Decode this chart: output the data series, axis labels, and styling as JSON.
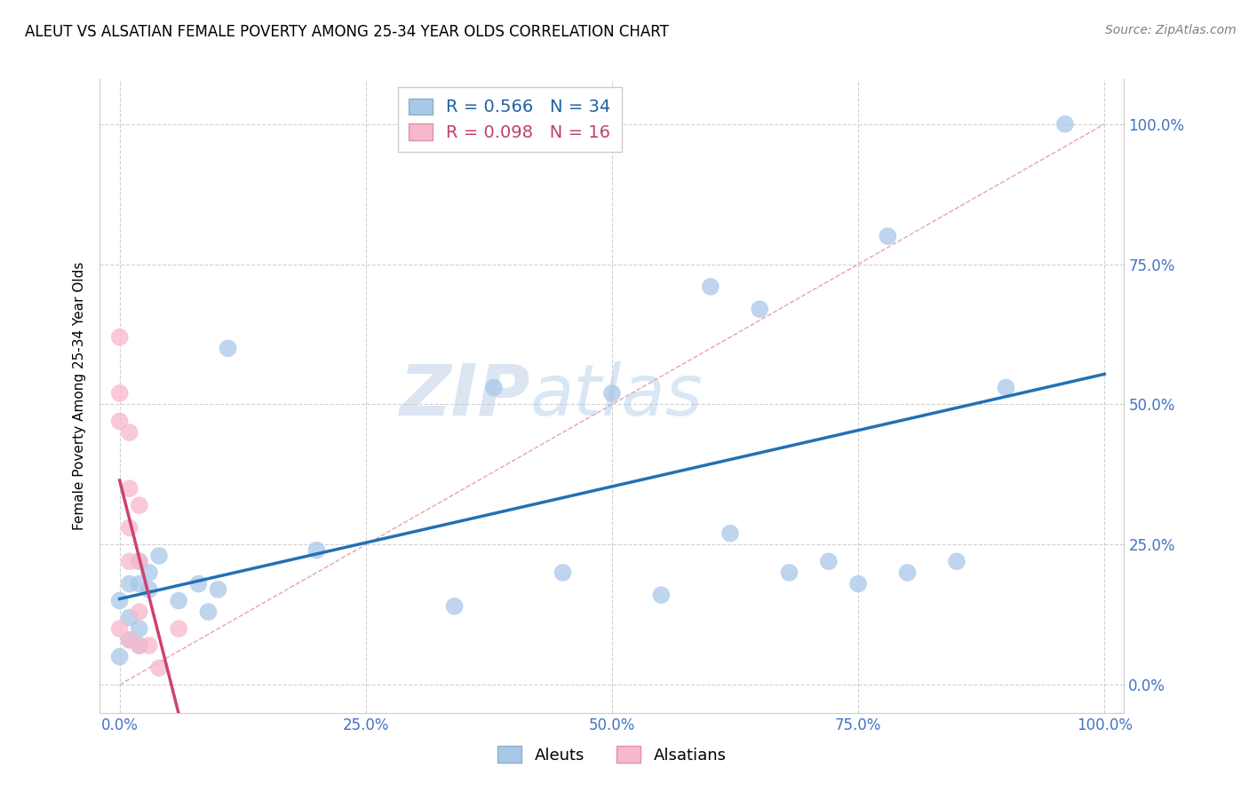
{
  "title": "ALEUT VS ALSATIAN FEMALE POVERTY AMONG 25-34 YEAR OLDS CORRELATION CHART",
  "source": "Source: ZipAtlas.com",
  "ylabel": "Female Poverty Among 25-34 Year Olds",
  "xlim": [
    -0.02,
    1.02
  ],
  "ylim": [
    -0.05,
    1.08
  ],
  "xticks": [
    0.0,
    0.25,
    0.5,
    0.75,
    1.0
  ],
  "yticks": [
    0.0,
    0.25,
    0.5,
    0.75,
    1.0
  ],
  "xticklabels": [
    "0.0%",
    "25.0%",
    "50.0%",
    "75.0%",
    "100.0%"
  ],
  "yticklabels": [
    "0.0%",
    "25.0%",
    "50.0%",
    "75.0%",
    "100.0%"
  ],
  "aleut_color": "#a8c8e8",
  "alsatian_color": "#f8b8cc",
  "aleut_R": 0.566,
  "aleut_N": 34,
  "alsatian_R": 0.098,
  "alsatian_N": 16,
  "aleut_line_color": "#2171b5",
  "alsatian_line_color": "#d04070",
  "diagonal_color": "#cccccc",
  "grid_color": "#cccccc",
  "watermark_zip": "ZIP",
  "watermark_atlas": "atlas",
  "aleut_x": [
    0.0,
    0.0,
    0.01,
    0.01,
    0.01,
    0.02,
    0.02,
    0.02,
    0.02,
    0.03,
    0.03,
    0.04,
    0.06,
    0.08,
    0.09,
    0.1,
    0.11,
    0.2,
    0.34,
    0.38,
    0.45,
    0.5,
    0.55,
    0.6,
    0.62,
    0.65,
    0.68,
    0.72,
    0.75,
    0.78,
    0.8,
    0.85,
    0.9,
    0.96
  ],
  "aleut_y": [
    0.05,
    0.15,
    0.08,
    0.12,
    0.18,
    0.07,
    0.1,
    0.18,
    0.22,
    0.17,
    0.2,
    0.23,
    0.15,
    0.18,
    0.13,
    0.17,
    0.6,
    0.24,
    0.14,
    0.53,
    0.2,
    0.52,
    0.16,
    0.71,
    0.27,
    0.67,
    0.2,
    0.22,
    0.18,
    0.8,
    0.2,
    0.22,
    0.53,
    1.0
  ],
  "alsatian_x": [
    0.0,
    0.0,
    0.0,
    0.0,
    0.01,
    0.01,
    0.01,
    0.01,
    0.01,
    0.02,
    0.02,
    0.02,
    0.02,
    0.03,
    0.04,
    0.06
  ],
  "alsatian_y": [
    0.62,
    0.52,
    0.47,
    0.1,
    0.45,
    0.35,
    0.28,
    0.22,
    0.08,
    0.32,
    0.22,
    0.13,
    0.07,
    0.07,
    0.03,
    0.1
  ]
}
